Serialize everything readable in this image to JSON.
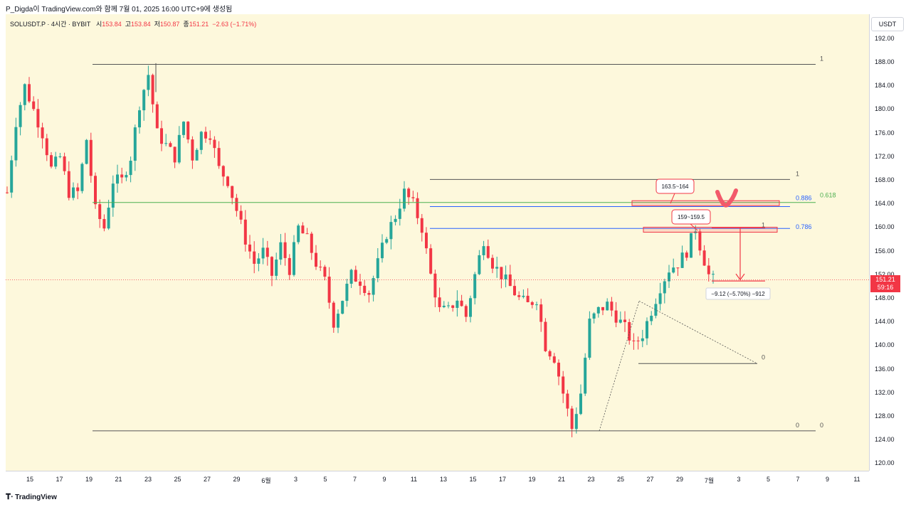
{
  "header": {
    "title": "P_Digda이 TradingView.com와 함께 7월 01, 2025 16:00 UTC+9에 생성됨"
  },
  "symbol": {
    "name": "SOLUSDT.P · 4시간 · BYBIT",
    "open_label": "시",
    "open": "153.84",
    "high_label": "고",
    "high": "153.84",
    "low_label": "저",
    "low": "150.87",
    "close_label": "종",
    "close": "151.21",
    "change": "−2.63 (−1.71%)"
  },
  "price_axis": {
    "unit": "USDT",
    "last_price": "151.21",
    "countdown": "59:16"
  },
  "logo": {
    "text": "TradingView"
  },
  "colors": {
    "up": "#26a69a",
    "down": "#f23645",
    "background": "#fdf8dc",
    "fib_green": "#4caf50",
    "fib_blue": "#2962ff"
  },
  "chart_data": {
    "type": "candlestick",
    "timeframe": "4h",
    "ylim": [
      118,
      194
    ],
    "y_ticks": [
      192,
      188,
      184,
      180,
      176,
      172,
      168,
      164,
      160,
      156,
      152,
      148,
      144,
      140,
      136,
      132,
      128,
      124,
      120
    ],
    "x_ticks": [
      "15",
      "17",
      "19",
      "21",
      "23",
      "25",
      "27",
      "29",
      "6월",
      "3",
      "5",
      "7",
      "9",
      "11",
      "13",
      "15",
      "17",
      "19",
      "21",
      "23",
      "25",
      "27",
      "29",
      "7월",
      "3",
      "5",
      "7",
      "9",
      "11"
    ],
    "price_path": [
      [
        0,
        166
      ],
      [
        2,
        178
      ],
      [
        4,
        184
      ],
      [
        6,
        180
      ],
      [
        8,
        176
      ],
      [
        10,
        170
      ],
      [
        12,
        172
      ],
      [
        14,
        166
      ],
      [
        16,
        166
      ],
      [
        18,
        175
      ],
      [
        20,
        163
      ],
      [
        22,
        160
      ],
      [
        24,
        168
      ],
      [
        26,
        168
      ],
      [
        28,
        172
      ],
      [
        30,
        181
      ],
      [
        32,
        186
      ],
      [
        34,
        176
      ],
      [
        36,
        174
      ],
      [
        38,
        172
      ],
      [
        40,
        178
      ],
      [
        42,
        172
      ],
      [
        44,
        176
      ],
      [
        46,
        176
      ],
      [
        48,
        170
      ],
      [
        50,
        168
      ],
      [
        52,
        163
      ],
      [
        54,
        158
      ],
      [
        56,
        154
      ],
      [
        58,
        156
      ],
      [
        60,
        152
      ],
      [
        62,
        157
      ],
      [
        64,
        153
      ],
      [
        66,
        160
      ],
      [
        68,
        158
      ],
      [
        70,
        154
      ],
      [
        72,
        151
      ],
      [
        74,
        144
      ],
      [
        76,
        148
      ],
      [
        78,
        152
      ],
      [
        80,
        151
      ],
      [
        82,
        149
      ],
      [
        84,
        154
      ],
      [
        86,
        159
      ],
      [
        88,
        162
      ],
      [
        90,
        166
      ],
      [
        92,
        164
      ],
      [
        94,
        160
      ],
      [
        96,
        152
      ],
      [
        98,
        146
      ],
      [
        100,
        146
      ],
      [
        102,
        148
      ],
      [
        104,
        145
      ],
      [
        106,
        152
      ],
      [
        108,
        158
      ],
      [
        110,
        154
      ],
      [
        112,
        152
      ],
      [
        114,
        150
      ],
      [
        116,
        148
      ],
      [
        118,
        147
      ],
      [
        120,
        148
      ],
      [
        122,
        140
      ],
      [
        124,
        138
      ],
      [
        126,
        132
      ],
      [
        128,
        126
      ],
      [
        130,
        132
      ],
      [
        132,
        144
      ],
      [
        134,
        146
      ],
      [
        136,
        147
      ],
      [
        138,
        145
      ],
      [
        140,
        143
      ],
      [
        142,
        140
      ],
      [
        144,
        142
      ],
      [
        146,
        146
      ],
      [
        148,
        150
      ],
      [
        150,
        153
      ],
      [
        152,
        154
      ],
      [
        154,
        156
      ],
      [
        156,
        160
      ],
      [
        157,
        157
      ],
      [
        159,
        152
      ],
      [
        160,
        151.21
      ]
    ],
    "annotations": [
      {
        "text": "1",
        "price": 187.7
      },
      {
        "text": "0",
        "price": 125.6
      },
      {
        "text": "0",
        "price": 125.6
      },
      {
        "text": "1",
        "price": 168.2
      },
      {
        "text": "0.886",
        "price": 164.3
      },
      {
        "text": "0.618",
        "price": 164.3
      },
      {
        "text": "0.786",
        "price": 159.9
      },
      {
        "text": "1",
        "price": 160.0
      },
      {
        "text": "0",
        "price": 137.0
      },
      {
        "text": "163.5~164"
      },
      {
        "text": "159~159.5"
      },
      {
        "text": "−9.12 (−5.70%) −912"
      }
    ]
  }
}
